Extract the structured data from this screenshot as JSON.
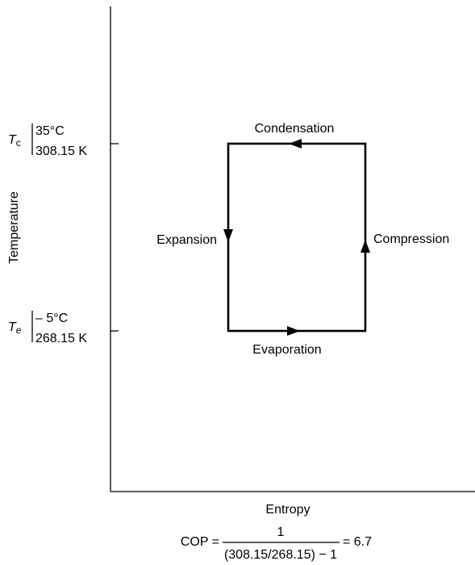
{
  "axes": {
    "y_label": "Temperature",
    "x_label": "Entropy"
  },
  "levels": [
    {
      "symbol": "T",
      "subscript": "c",
      "celsius": "35°C",
      "kelvin": "308.15 K"
    },
    {
      "symbol": "T",
      "subscript": "e",
      "celsius": "– 5°C",
      "kelvin": "268.15 K"
    }
  ],
  "processes": {
    "top": "Condensation",
    "bottom": "Evaporation",
    "left": "Expansion",
    "right": "Compression"
  },
  "formula": {
    "lhs": "COP =",
    "numerator": "1",
    "denominator": "(308.15/268.15) − 1",
    "result": "= 6.7"
  }
}
